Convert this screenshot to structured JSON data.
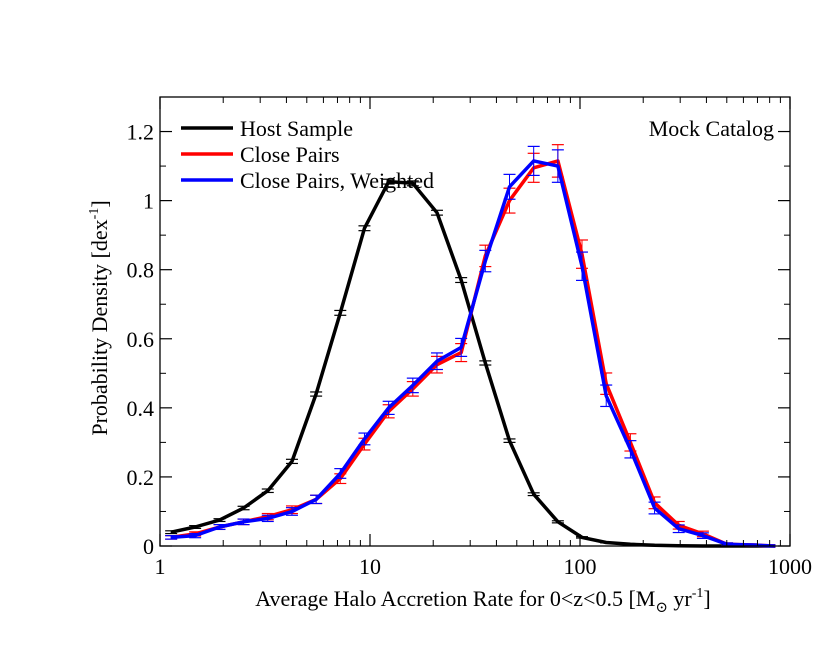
{
  "chart_data": {
    "type": "line",
    "annotation": "Mock Catalog",
    "xlabel": {
      "prefix": "Average Halo Accretion Rate for 0<z<0.5 [M",
      "sub": "⊙",
      "mid": " yr",
      "sup": "-1",
      "suffix": "]"
    },
    "ylabel": {
      "prefix": "Probability Density [dex",
      "sup": "-1",
      "suffix": "]"
    },
    "xscale": "log",
    "xlim": [
      1,
      1000
    ],
    "ylim": [
      0,
      1.3
    ],
    "xticks": [
      {
        "value": 1,
        "label": "1"
      },
      {
        "value": 10,
        "label": "10"
      },
      {
        "value": 100,
        "label": "100"
      },
      {
        "value": 1000,
        "label": "1000"
      }
    ],
    "yticks": [
      {
        "value": 0,
        "label": "0"
      },
      {
        "value": 0.2,
        "label": "0.2"
      },
      {
        "value": 0.4,
        "label": "0.4"
      },
      {
        "value": 0.6,
        "label": "0.6"
      },
      {
        "value": 0.8,
        "label": "0.8"
      },
      {
        "value": 1.0,
        "label": "1"
      },
      {
        "value": 1.2,
        "label": "1.2"
      }
    ],
    "grid": false,
    "legend_position": "top-left",
    "series": [
      {
        "name": "Host Sample",
        "color": "#000000",
        "x": [
          1.13,
          1.47,
          1.92,
          2.5,
          3.26,
          4.25,
          5.54,
          7.22,
          9.41,
          12.27,
          15.99,
          20.84,
          27.17,
          35.41,
          46.16,
          60.18,
          78.44,
          102.2,
          133.3,
          173.8,
          226.5,
          295.2,
          384.8,
          501.6,
          653.9,
          852.3
        ],
        "y": [
          0.04,
          0.055,
          0.075,
          0.11,
          0.16,
          0.245,
          0.44,
          0.675,
          0.92,
          1.055,
          1.05,
          0.965,
          0.77,
          0.53,
          0.305,
          0.15,
          0.07,
          0.025,
          0.01,
          0.005,
          0.002,
          0.001,
          0.0,
          0.0,
          0.0,
          0.0
        ],
        "err": [
          0.004,
          0.004,
          0.004,
          0.005,
          0.005,
          0.006,
          0.006,
          0.007,
          0.007,
          0.007,
          0.007,
          0.007,
          0.007,
          0.006,
          0.005,
          0.004,
          0.003,
          0.002,
          0.001,
          0.001,
          0.001,
          0.001,
          0.001,
          0.0,
          0.0,
          0.0
        ]
      },
      {
        "name": "Close Pairs",
        "color": "#ff0000",
        "x": [
          1.13,
          1.47,
          1.92,
          2.5,
          3.26,
          4.25,
          5.54,
          7.22,
          9.41,
          12.27,
          15.99,
          20.84,
          27.17,
          35.41,
          46.16,
          60.18,
          78.44,
          102.2,
          133.3,
          173.8,
          226.5,
          295.2,
          384.8,
          501.6,
          653.9,
          852.3
        ],
        "y": [
          0.025,
          0.035,
          0.055,
          0.07,
          0.085,
          0.105,
          0.135,
          0.195,
          0.295,
          0.39,
          0.455,
          0.525,
          0.56,
          0.84,
          1.0,
          1.095,
          1.115,
          0.845,
          0.47,
          0.3,
          0.125,
          0.06,
          0.035,
          0.005,
          0.003,
          0.0
        ],
        "err": [
          0.005,
          0.006,
          0.007,
          0.008,
          0.009,
          0.011,
          0.012,
          0.014,
          0.017,
          0.019,
          0.021,
          0.024,
          0.026,
          0.031,
          0.036,
          0.042,
          0.047,
          0.041,
          0.031,
          0.025,
          0.017,
          0.011,
          0.008,
          0.004,
          0.003,
          0.0
        ]
      },
      {
        "name": "Close Pairs, Weighted",
        "color": "#0000ff",
        "x": [
          1.13,
          1.47,
          1.92,
          2.5,
          3.26,
          4.25,
          5.54,
          7.22,
          9.41,
          12.27,
          15.99,
          20.84,
          27.17,
          35.41,
          46.16,
          60.18,
          78.44,
          102.2,
          133.3,
          173.8,
          226.5,
          295.2,
          384.8,
          501.6,
          653.9,
          852.3
        ],
        "y": [
          0.025,
          0.03,
          0.055,
          0.07,
          0.08,
          0.1,
          0.135,
          0.21,
          0.31,
          0.4,
          0.465,
          0.535,
          0.575,
          0.825,
          1.04,
          1.115,
          1.1,
          0.81,
          0.435,
          0.28,
          0.11,
          0.05,
          0.03,
          0.005,
          0.003,
          0.0
        ],
        "err": [
          0.005,
          0.006,
          0.007,
          0.008,
          0.009,
          0.011,
          0.012,
          0.014,
          0.017,
          0.019,
          0.021,
          0.024,
          0.026,
          0.031,
          0.036,
          0.042,
          0.047,
          0.041,
          0.031,
          0.025,
          0.017,
          0.011,
          0.008,
          0.004,
          0.003,
          0.0
        ]
      }
    ]
  }
}
